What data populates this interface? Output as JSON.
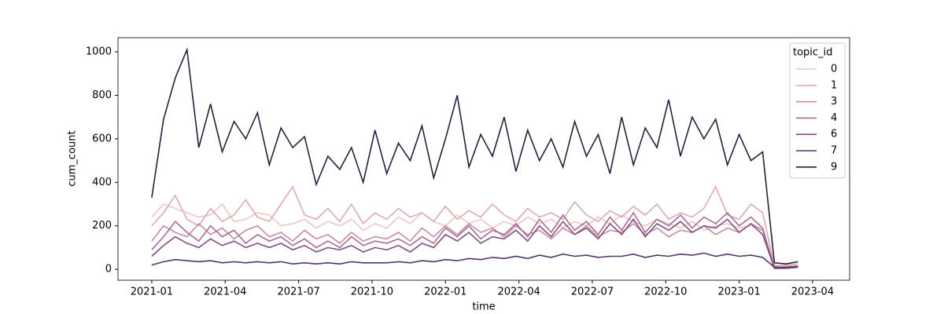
{
  "chart_data": {
    "type": "line",
    "x_label": "time",
    "y_label": "cum_count",
    "legend_title": "topic_id",
    "legend": "upper right",
    "x": [
      2021,
      2021.04,
      2021.08,
      2021.12,
      2021.16,
      2021.2,
      2021.24,
      2021.28,
      2021.32,
      2021.36,
      2021.4,
      2021.44,
      2021.48,
      2021.52,
      2021.56,
      2021.6,
      2021.64,
      2021.68,
      2021.72,
      2021.76,
      2021.8,
      2021.84,
      2021.88,
      2021.92,
      2021.96,
      2022,
      2022.04,
      2022.08,
      2022.12,
      2022.16,
      2022.2,
      2022.24,
      2022.28,
      2022.32,
      2022.36,
      2022.4,
      2022.44,
      2022.48,
      2022.52,
      2022.56,
      2022.6,
      2022.64,
      2022.68,
      2022.72,
      2022.76,
      2022.8,
      2022.84,
      2022.88,
      2022.92,
      2022.96,
      2023,
      2023.04,
      2023.08,
      2023.12,
      2023.16,
      2023.2
    ],
    "xlim": [
      2020.885,
      2023.376
    ],
    "xticks": [
      {
        "value": 2021,
        "label": "2021-01"
      },
      {
        "value": 2021.25,
        "label": "2021-04"
      },
      {
        "value": 2021.5,
        "label": "2021-07"
      },
      {
        "value": 2021.75,
        "label": "2021-10"
      },
      {
        "value": 2022,
        "label": "2022-01"
      },
      {
        "value": 2022.25,
        "label": "2022-04"
      },
      {
        "value": 2022.5,
        "label": "2022-07"
      },
      {
        "value": 2022.75,
        "label": "2022-10"
      },
      {
        "value": 2023,
        "label": "2023-01"
      },
      {
        "value": 2023.25,
        "label": "2023-04"
      }
    ],
    "ylim": [
      -50,
      1065
    ],
    "yticks": [
      0,
      200,
      400,
      600,
      800,
      1000
    ],
    "series": [
      {
        "name": "0",
        "color": "#ebc7c3",
        "values": [
          240,
          300,
          280,
          260,
          240,
          250,
          300,
          220,
          230,
          260,
          250,
          200,
          210,
          230,
          190,
          220,
          200,
          230,
          180,
          210,
          190,
          240,
          210,
          260,
          220,
          200,
          250,
          210,
          230,
          190,
          220,
          200,
          240,
          210,
          230,
          190,
          220,
          200,
          240,
          210,
          250,
          220,
          200,
          230,
          210,
          190,
          220,
          180,
          200,
          210,
          190,
          200,
          180,
          20,
          15,
          25
        ]
      },
      {
        "name": "1",
        "color": "#dcaab3",
        "values": [
          200,
          260,
          340,
          230,
          200,
          280,
          220,
          250,
          320,
          240,
          220,
          300,
          380,
          250,
          230,
          280,
          220,
          300,
          210,
          260,
          230,
          280,
          240,
          260,
          220,
          290,
          230,
          270,
          240,
          300,
          250,
          220,
          280,
          240,
          260,
          230,
          310,
          250,
          220,
          270,
          240,
          290,
          250,
          300,
          230,
          260,
          240,
          280,
          380,
          250,
          230,
          300,
          260,
          15,
          20,
          25
        ]
      },
      {
        "name": "3",
        "color": "#c68ba0",
        "values": [
          130,
          200,
          170,
          150,
          210,
          160,
          190,
          140,
          180,
          200,
          150,
          170,
          130,
          180,
          140,
          160,
          120,
          170,
          130,
          150,
          140,
          170,
          130,
          190,
          150,
          200,
          160,
          210,
          170,
          190,
          150,
          200,
          160,
          180,
          140,
          190,
          160,
          200,
          150,
          180,
          170,
          210,
          160,
          190,
          150,
          180,
          170,
          200,
          160,
          190,
          170,
          210,
          180,
          10,
          10,
          15
        ]
      },
      {
        "name": "4",
        "color": "#a96a91",
        "values": [
          90,
          150,
          220,
          170,
          130,
          200,
          150,
          180,
          120,
          160,
          130,
          150,
          110,
          140,
          100,
          130,
          100,
          150,
          110,
          130,
          120,
          140,
          110,
          150,
          120,
          190,
          150,
          200,
          140,
          180,
          160,
          210,
          150,
          230,
          170,
          250,
          180,
          220,
          160,
          240,
          180,
          260,
          170,
          230,
          200,
          250,
          190,
          240,
          210,
          260,
          200,
          240,
          190,
          5,
          5,
          10
        ]
      },
      {
        "name": "6",
        "color": "#814c80",
        "values": [
          60,
          110,
          150,
          120,
          100,
          140,
          110,
          130,
          100,
          120,
          100,
          120,
          90,
          110,
          80,
          100,
          90,
          110,
          80,
          100,
          90,
          110,
          80,
          120,
          100,
          160,
          130,
          170,
          120,
          150,
          140,
          180,
          130,
          200,
          150,
          220,
          160,
          190,
          140,
          210,
          160,
          230,
          150,
          210,
          180,
          220,
          170,
          200,
          190,
          230,
          170,
          210,
          160,
          5,
          5,
          10
        ]
      },
      {
        "name": "7",
        "color": "#573467",
        "values": [
          20,
          35,
          45,
          40,
          35,
          40,
          30,
          35,
          30,
          35,
          30,
          35,
          25,
          30,
          25,
          30,
          25,
          35,
          30,
          30,
          30,
          35,
          30,
          40,
          35,
          45,
          40,
          50,
          45,
          55,
          50,
          60,
          50,
          65,
          55,
          70,
          60,
          65,
          55,
          60,
          60,
          70,
          55,
          65,
          60,
          70,
          65,
          75,
          60,
          70,
          60,
          65,
          55,
          10,
          10,
          15
        ]
      },
      {
        "name": "9",
        "color": "#2c1d3d",
        "values": [
          330,
          690,
          880,
          1010,
          560,
          760,
          540,
          680,
          600,
          720,
          480,
          650,
          560,
          610,
          390,
          520,
          460,
          560,
          400,
          640,
          440,
          580,
          500,
          660,
          420,
          600,
          800,
          470,
          620,
          520,
          700,
          450,
          640,
          500,
          600,
          470,
          680,
          520,
          620,
          440,
          700,
          480,
          650,
          560,
          780,
          520,
          700,
          600,
          690,
          480,
          620,
          500,
          540,
          30,
          25,
          35
        ]
      }
    ]
  }
}
